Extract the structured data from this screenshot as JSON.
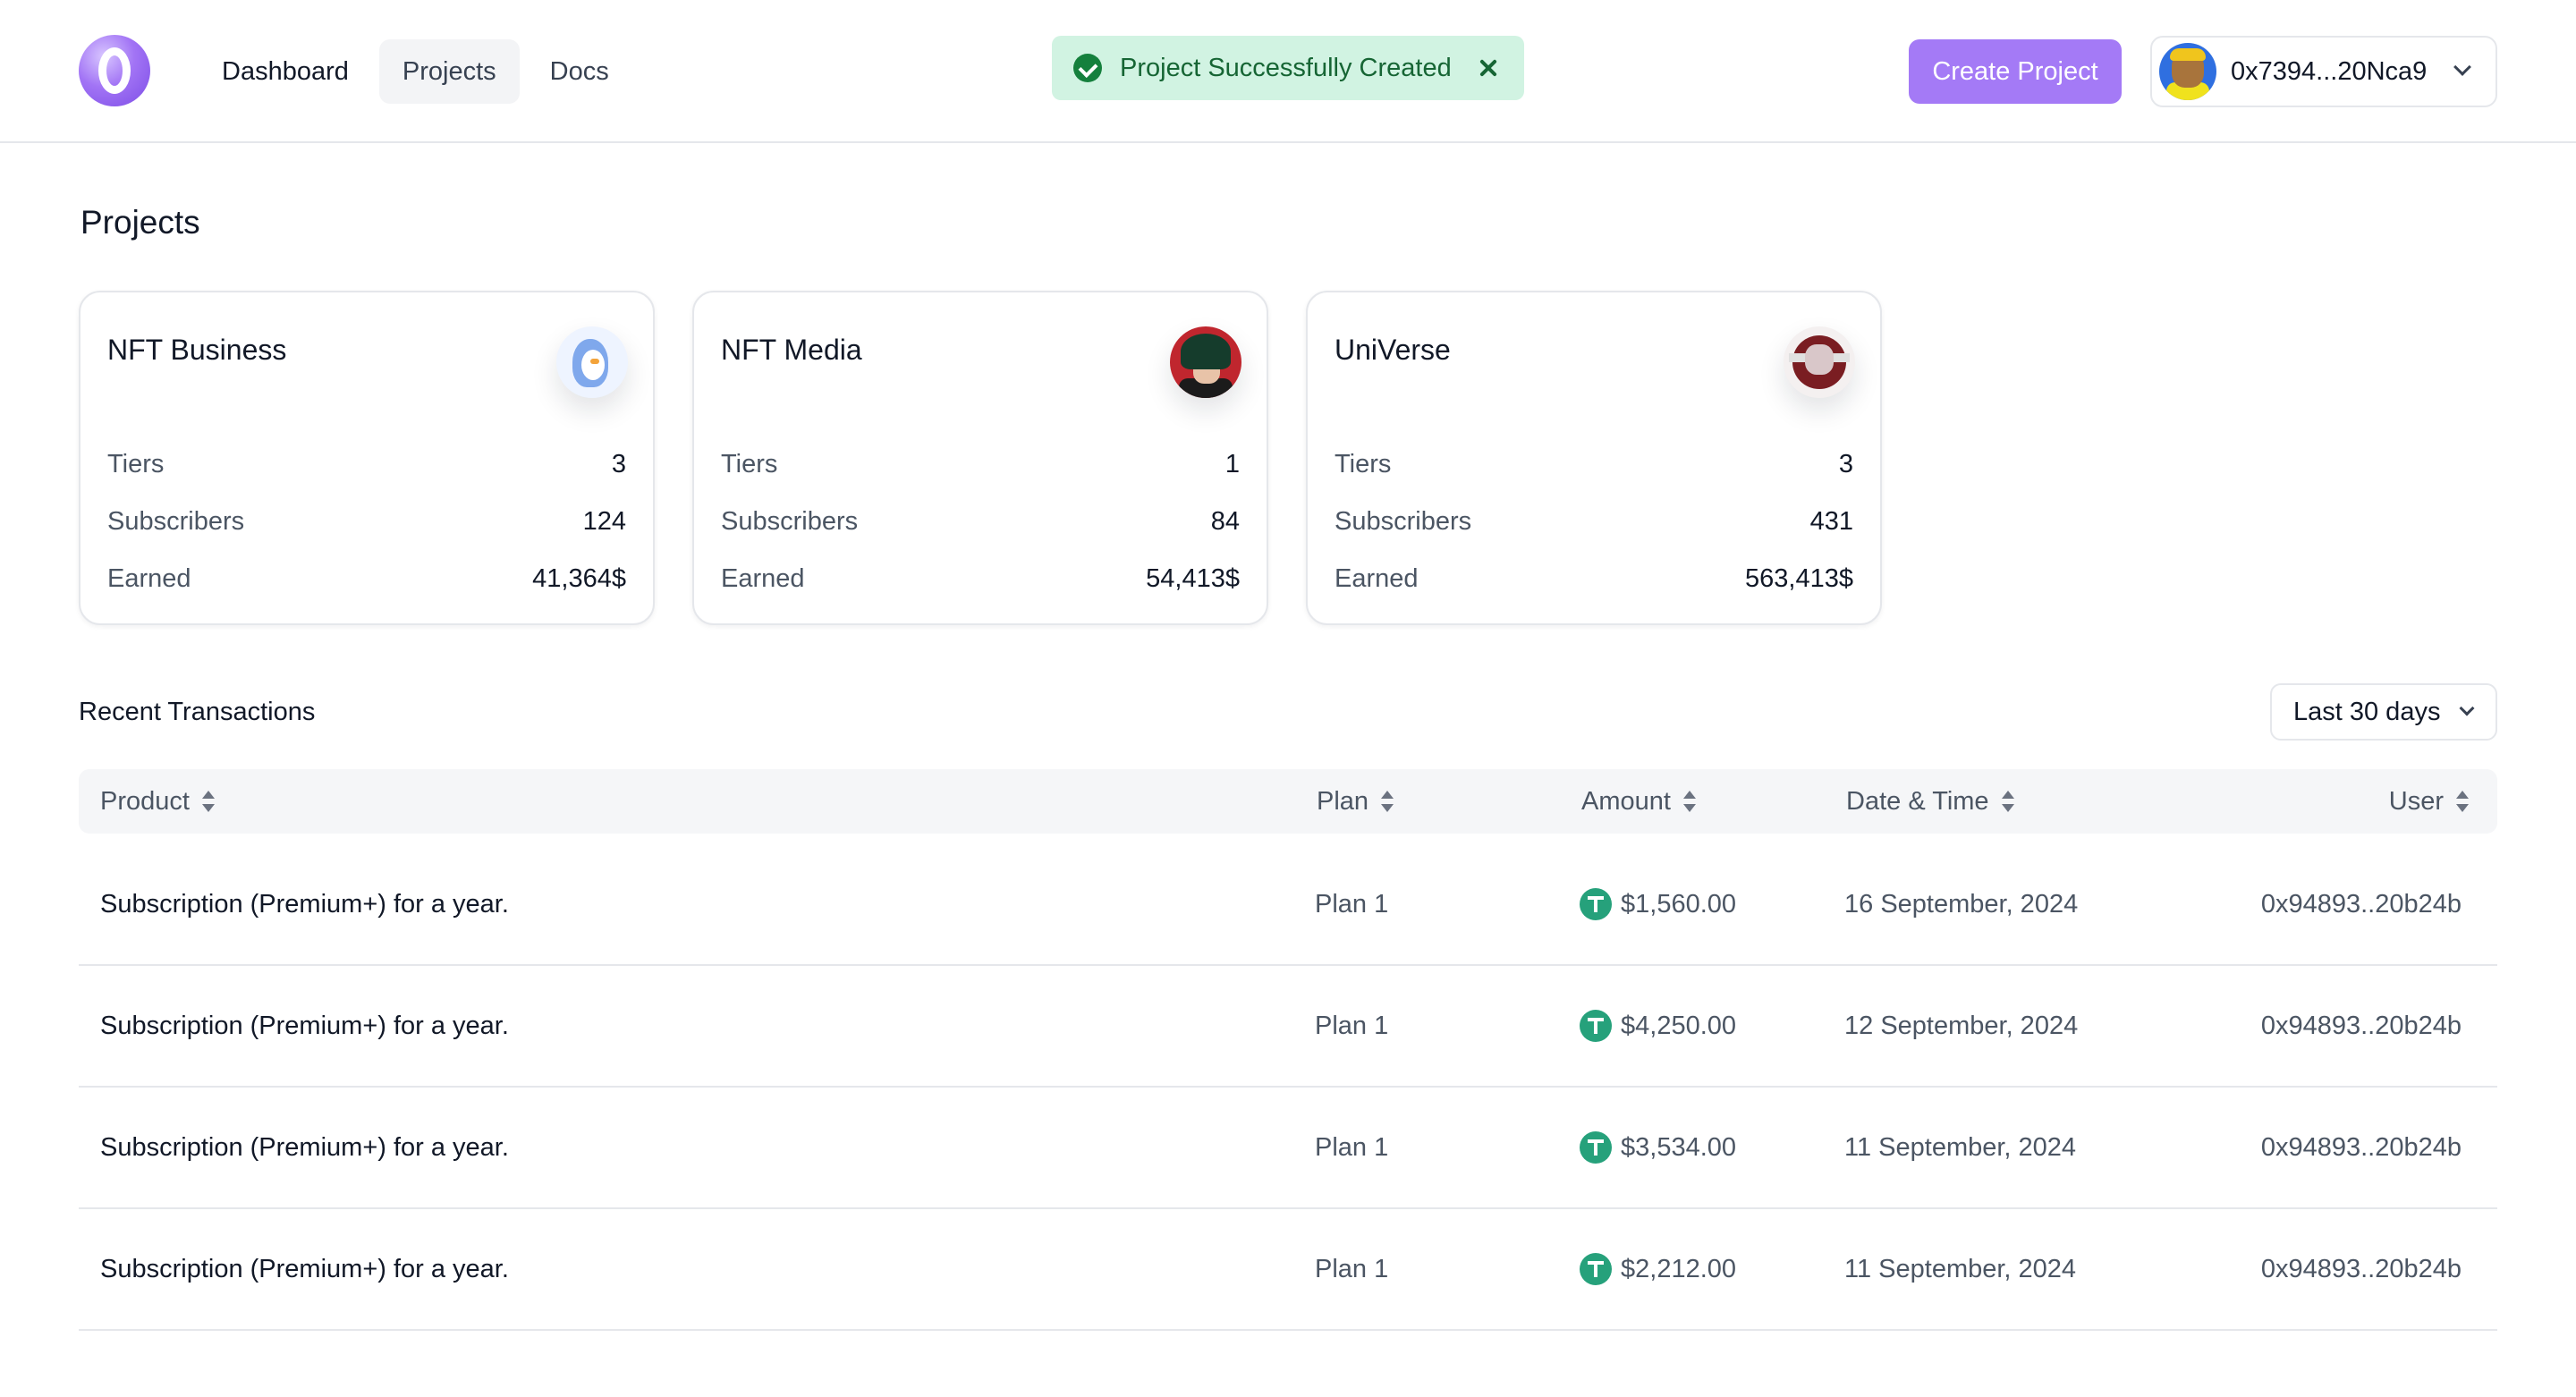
{
  "header": {
    "nav": [
      {
        "label": "Dashboard"
      },
      {
        "label": "Projects"
      },
      {
        "label": "Docs"
      }
    ],
    "toast": {
      "message": "Project Successfully Created"
    },
    "create_button": "Create Project",
    "wallet": {
      "address": "0x7394...20Nca9"
    }
  },
  "page": {
    "title": "Projects"
  },
  "projects": [
    {
      "name": "NFT Business",
      "avatar": "penguin-avatar",
      "tiers_label": "Tiers",
      "tiers": "3",
      "subscribers_label": "Subscribers",
      "subscribers": "124",
      "earned_label": "Earned",
      "earned": "41,364$"
    },
    {
      "name": "NFT Media",
      "avatar": "anime-avatar",
      "tiers_label": "Tiers",
      "tiers": "1",
      "subscribers_label": "Subscribers",
      "subscribers": "84",
      "earned_label": "Earned",
      "earned": "54,413$"
    },
    {
      "name": "UniVerse",
      "avatar": "mech-avatar",
      "tiers_label": "Tiers",
      "tiers": "3",
      "subscribers_label": "Subscribers",
      "subscribers": "431",
      "earned_label": "Earned",
      "earned": "563,413$"
    }
  ],
  "transactions": {
    "title": "Recent Transactions",
    "range": "Last 30 days",
    "columns": {
      "product": "Product",
      "plan": "Plan",
      "amount": "Amount",
      "date": "Date & Time",
      "user": "User"
    },
    "rows": [
      {
        "product": "Subscription (Premium+) for a year.",
        "plan": "Plan 1",
        "amount": "$1,560.00",
        "date": "16 September, 2024",
        "user": "0x94893..20b24b"
      },
      {
        "product": "Subscription (Premium+) for a year.",
        "plan": "Plan 1",
        "amount": "$4,250.00",
        "date": "12 September, 2024",
        "user": "0x94893..20b24b"
      },
      {
        "product": "Subscription (Premium+) for a year.",
        "plan": "Plan 1",
        "amount": "$3,534.00",
        "date": "11 September, 2024",
        "user": "0x94893..20b24b"
      },
      {
        "product": "Subscription (Premium+) for a year.",
        "plan": "Plan 1",
        "amount": "$2,212.00",
        "date": "11 September, 2024",
        "user": "0x94893..20b24b"
      }
    ]
  },
  "colors": {
    "accent": "#a47af6",
    "toast_bg": "#d1f3e2",
    "toast_text": "#166534",
    "tether": "#26a17b"
  }
}
